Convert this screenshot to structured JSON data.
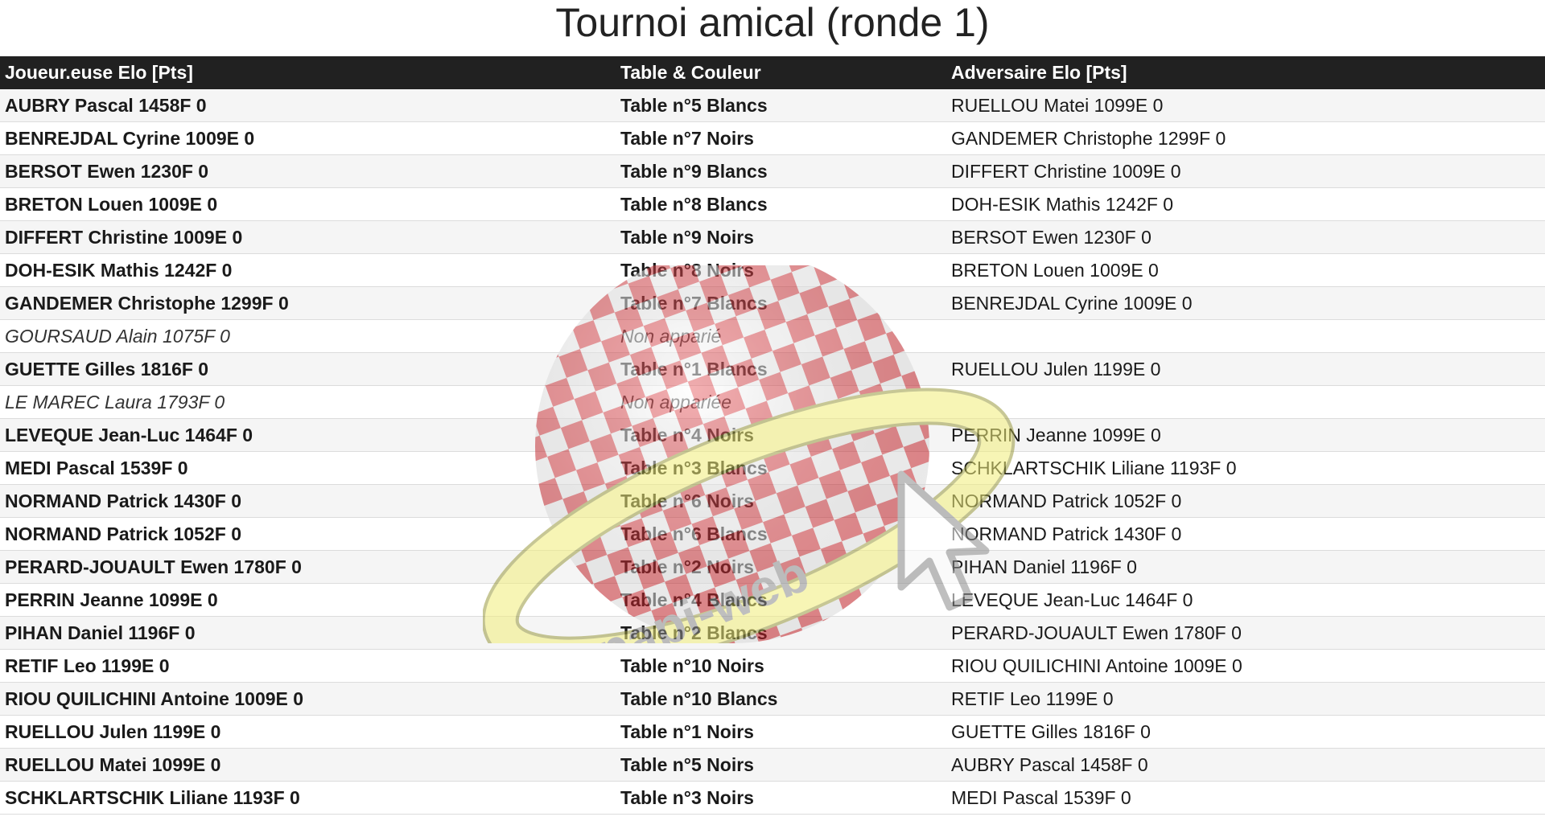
{
  "page": {
    "title": "Tournoi amical (ronde 1)"
  },
  "table": {
    "headers": [
      "Joueur.euse Elo [Pts]",
      "Table & Couleur",
      "Adversaire Elo [Pts]"
    ],
    "rows": [
      {
        "player": "AUBRY Pascal 1458F 0",
        "table": "Table n°5 Blancs",
        "opponent": "RUELLOU Matei 1099E 0"
      },
      {
        "player": "BENREJDAL Cyrine 1009E 0",
        "table": "Table n°7 Noirs",
        "opponent": "GANDEMER Christophe 1299F 0"
      },
      {
        "player": "BERSOT Ewen 1230F 0",
        "table": "Table n°9 Blancs",
        "opponent": "DIFFERT Christine 1009E 0"
      },
      {
        "player": "BRETON Louen 1009E 0",
        "table": "Table n°8 Blancs",
        "opponent": "DOH-ESIK Mathis 1242F 0"
      },
      {
        "player": "DIFFERT Christine 1009E 0",
        "table": "Table n°9 Noirs",
        "opponent": "BERSOT Ewen 1230F 0"
      },
      {
        "player": "DOH-ESIK Mathis 1242F 0",
        "table": "Table n°8 Noirs",
        "opponent": "BRETON Louen 1009E 0"
      },
      {
        "player": "GANDEMER Christophe 1299F 0",
        "table": "Table n°7 Blancs",
        "opponent": "BENREJDAL Cyrine 1009E 0"
      },
      {
        "player": "GOURSAUD Alain 1075F 0",
        "table": "Non apparié",
        "opponent": "",
        "bye": true
      },
      {
        "player": "GUETTE Gilles 1816F 0",
        "table": "Table n°1 Blancs",
        "opponent": "RUELLOU Julen 1199E 0"
      },
      {
        "player": "LE MAREC Laura 1793F 0",
        "table": "Non appariée",
        "opponent": "",
        "bye": true
      },
      {
        "player": "LEVEQUE Jean-Luc 1464F 0",
        "table": "Table n°4 Noirs",
        "opponent": "PERRIN Jeanne 1099E 0"
      },
      {
        "player": "MEDI Pascal 1539F 0",
        "table": "Table n°3 Blancs",
        "opponent": "SCHKLARTSCHIK Liliane 1193F 0"
      },
      {
        "player": "NORMAND Patrick 1430F 0",
        "table": "Table n°6 Noirs",
        "opponent": "NORMAND Patrick 1052F 0"
      },
      {
        "player": "NORMAND Patrick 1052F 0",
        "table": "Table n°6 Blancs",
        "opponent": "NORMAND Patrick 1430F 0"
      },
      {
        "player": "PERARD-JOUAULT Ewen 1780F 0",
        "table": "Table n°2 Noirs",
        "opponent": "PIHAN Daniel 1196F 0"
      },
      {
        "player": "PERRIN Jeanne 1099E 0",
        "table": "Table n°4 Blancs",
        "opponent": "LEVEQUE Jean-Luc 1464F 0"
      },
      {
        "player": "PIHAN Daniel 1196F 0",
        "table": "Table n°2 Blancs",
        "opponent": "PERARD-JOUAULT Ewen 1780F 0"
      },
      {
        "player": "RETIF Leo 1199E 0",
        "table": "Table n°10 Noirs",
        "opponent": "RIOU QUILICHINI Antoine 1009E 0"
      },
      {
        "player": "RIOU QUILICHINI Antoine 1009E 0",
        "table": "Table n°10 Blancs",
        "opponent": "RETIF Leo 1199E 0"
      },
      {
        "player": "RUELLOU Julen 1199E 0",
        "table": "Table n°1 Noirs",
        "opponent": "GUETTE Gilles 1816F 0"
      },
      {
        "player": "RUELLOU Matei 1099E 0",
        "table": "Table n°5 Noirs",
        "opponent": "AUBRY Pascal 1458F 0"
      },
      {
        "player": "SCHKLARTSCHIK Liliane 1193F 0",
        "table": "Table n°3 Noirs",
        "opponent": "MEDI Pascal 1539F 0"
      }
    ]
  },
  "watermark": {
    "text": "papi-web",
    "icons": [
      "checkered-globe-icon",
      "orbit-ring-icon",
      "cursor-arrow-icon"
    ],
    "colors": {
      "red": "#e0242b",
      "yellow": "#f2ee7a",
      "ring_edge": "#9a9a40",
      "text": "#8c8c8c"
    }
  },
  "colors": {
    "header_bg": "#212121",
    "header_text": "#ffffff",
    "row_alt": "#f1f1f1"
  }
}
